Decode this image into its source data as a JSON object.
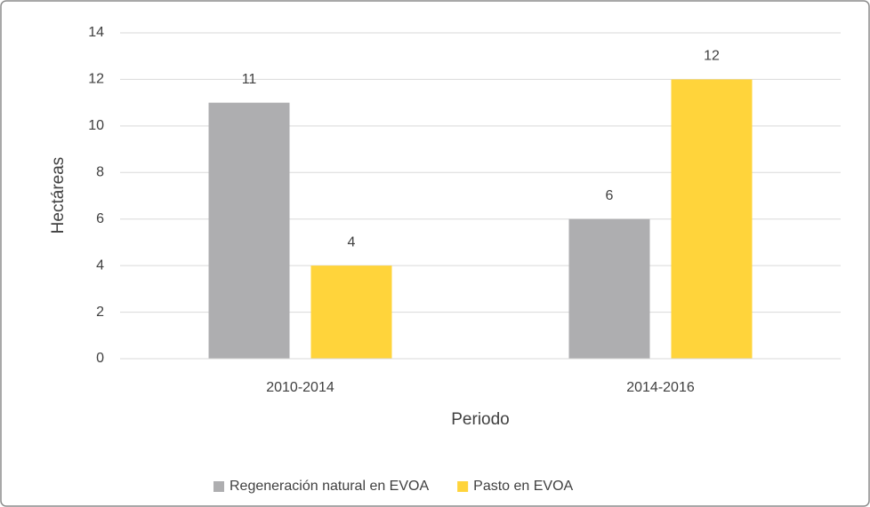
{
  "chart_data": {
    "type": "bar",
    "categories": [
      "2010-2014",
      "2014-2016"
    ],
    "series": [
      {
        "name": "Regeneración natural en EVOA",
        "color": "#aeaeb0",
        "values": [
          11,
          6
        ]
      },
      {
        "name": "Pasto en EVOA",
        "color": "#ffd43b",
        "values": [
          4,
          12
        ]
      }
    ],
    "x_label": "Periodo",
    "y_label": "Hectáreas",
    "ylim": [
      0,
      14
    ],
    "yticks": [
      0,
      2,
      4,
      6,
      8,
      10,
      12,
      14
    ],
    "grid": true,
    "legend": "bottom",
    "data_labels": true
  }
}
